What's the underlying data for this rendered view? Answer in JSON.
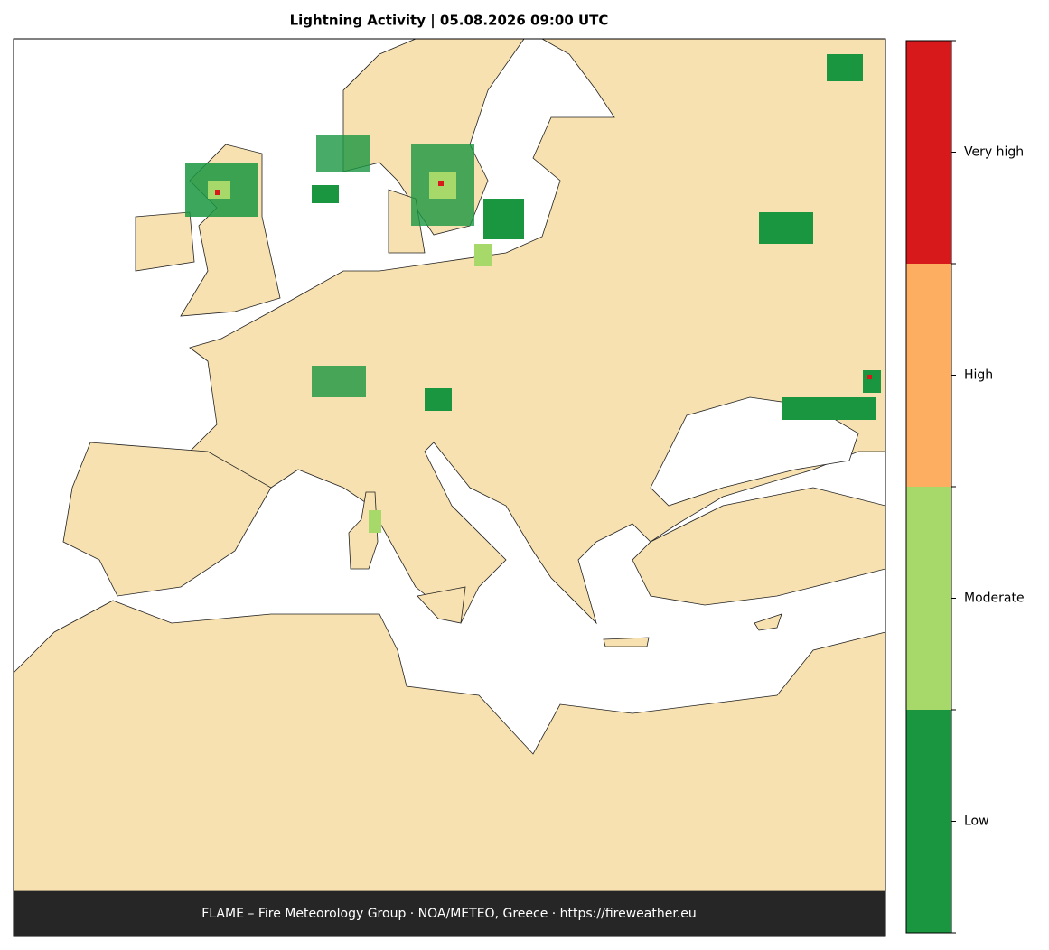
{
  "title": "Lightning Activity  |  05.08.2026 09:00 UTC",
  "footer": "FLAME – Fire Meteorology Group · NOA/METEO, Greece · https://fireweather.eu",
  "legend": {
    "categories": [
      {
        "label": "Low",
        "color": "#1a9641"
      },
      {
        "label": "Moderate",
        "color": "#a6d96a"
      },
      {
        "label": "High",
        "color": "#fdae61"
      },
      {
        "label": "Very high",
        "color": "#d7191c"
      }
    ]
  }
}
